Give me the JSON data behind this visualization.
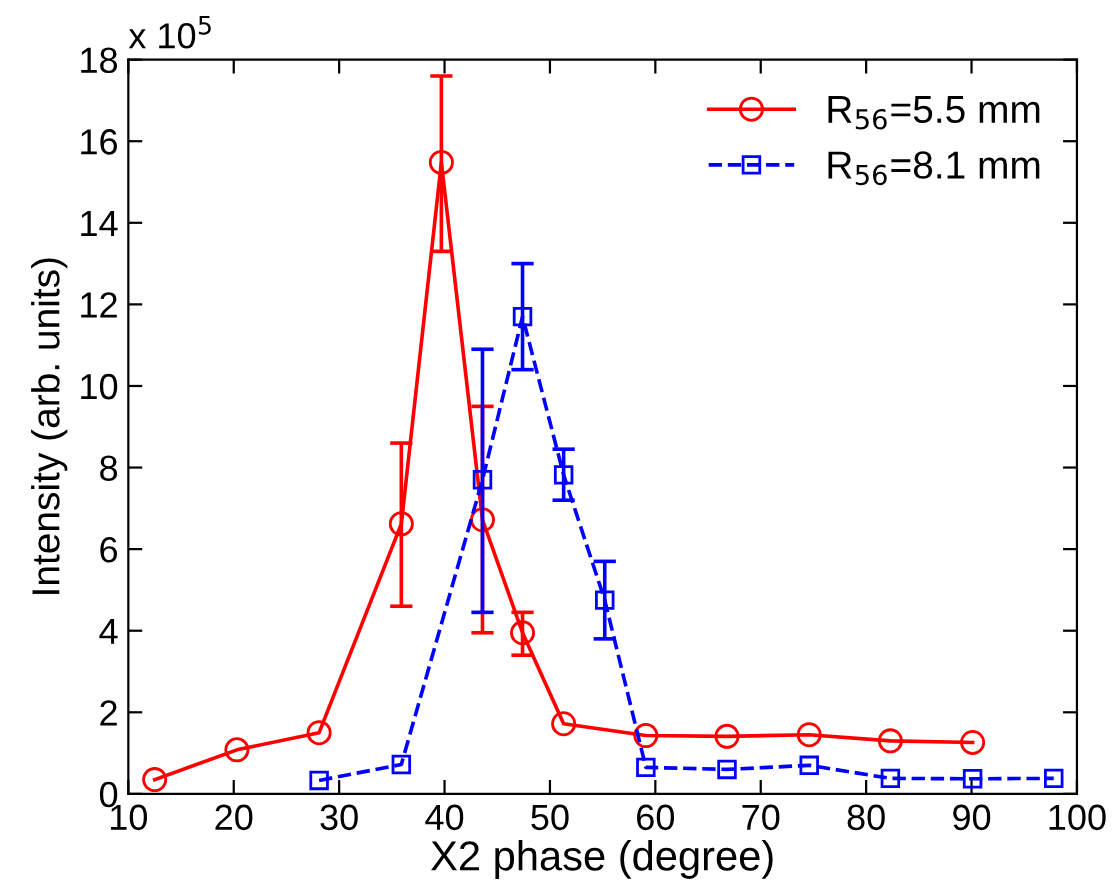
{
  "chart_data": {
    "type": "line",
    "xlabel": "X2 phase (degree)",
    "ylabel": "Intensity (arb. units)",
    "annotations": [
      "x 10$^{5}$"
    ],
    "xlim": [
      10,
      100
    ],
    "xticks": [
      10,
      20,
      30,
      40,
      50,
      60,
      70,
      80,
      90,
      100
    ],
    "ylim": [
      0,
      18
    ],
    "yticks": [
      0,
      2,
      4,
      6,
      8,
      10,
      12,
      14,
      16,
      18
    ],
    "legend": "top right",
    "grid": false,
    "series": [
      {
        "name": "R$_{56}$=5.5 mm",
        "color": "#ff0000",
        "marker": "circle",
        "line_style": "solid",
        "x": [
          12.5,
          20.3,
          28.1,
          35.9,
          39.7,
          43.6,
          47.4,
          51.3,
          59.1,
          66.8,
          74.6,
          82.3,
          90.1
        ],
        "values": [
          0.35,
          1.08,
          1.5,
          6.62,
          15.48,
          6.72,
          3.95,
          1.72,
          1.43,
          1.41,
          1.45,
          1.3,
          1.26
        ],
        "errors": [
          null,
          null,
          null,
          [
            4.6,
            8.6
          ],
          [
            13.3,
            17.6
          ],
          [
            3.95,
            9.5
          ],
          [
            3.4,
            4.45
          ],
          null,
          null,
          null,
          null,
          null,
          null
        ]
      },
      {
        "name": "R$_{56}$=8.1 mm",
        "color": "#0000ff",
        "marker": "square",
        "line_style": "dashed",
        "x": [
          28.1,
          35.9,
          43.6,
          47.4,
          51.3,
          55.2,
          59.1,
          66.8,
          74.6,
          82.3,
          90.1,
          97.8
        ],
        "values": [
          0.33,
          0.72,
          7.7,
          11.7,
          7.82,
          4.75,
          0.65,
          0.6,
          0.7,
          0.38,
          0.37,
          0.38
        ],
        "errors": [
          null,
          null,
          [
            4.45,
            10.9
          ],
          [
            10.4,
            13.0
          ],
          [
            7.2,
            8.45
          ],
          [
            3.8,
            5.7
          ],
          null,
          null,
          null,
          null,
          null,
          null
        ]
      }
    ]
  }
}
